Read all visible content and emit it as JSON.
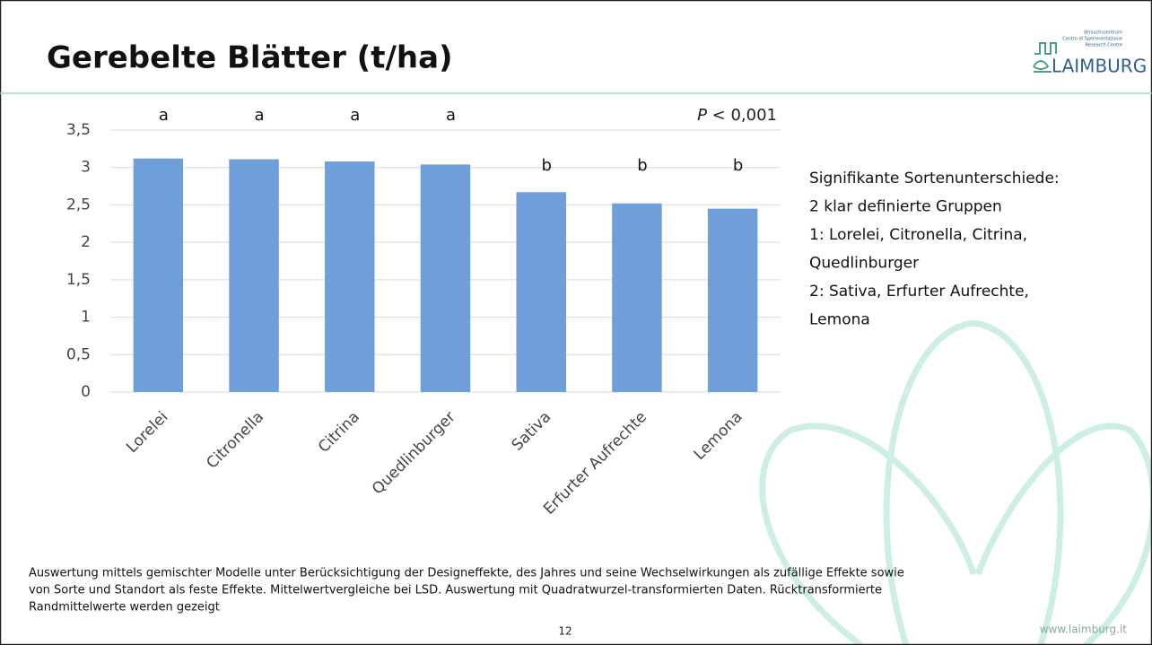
{
  "chart_data": {
    "type": "bar",
    "title": "Gerebelte Blätter (t/ha)",
    "categories": [
      "Lorelei",
      "Citronella",
      "Citrina",
      "Quedlinburger",
      "Sativa",
      "Erfurter Aufrechte",
      "Lemona"
    ],
    "values": [
      3.12,
      3.11,
      3.08,
      3.04,
      2.67,
      2.52,
      2.45
    ],
    "group_labels": [
      "a",
      "a",
      "a",
      "a",
      "b",
      "b",
      "b"
    ],
    "p_symbol": "P",
    "p_value": "< 0,001",
    "color": "#6f9fd8",
    "ylim": [
      0,
      3.5
    ],
    "yticks": [
      0,
      {
        "value": 0.5,
        "label": "0,5"
      },
      1,
      {
        "value": 1.5,
        "label": "1,5"
      },
      2,
      {
        "value": 2.5,
        "label": "2,5"
      },
      3,
      {
        "value": 3.5,
        "label": "3,5"
      }
    ],
    "grid": true
  },
  "notes": [
    "Signifikante Sortenunterschiede:",
    "2 klar definierte Gruppen",
    "1: Lorelei, Citronella, Citrina,",
    "Quedlinburger",
    "2: Sativa, Erfurter Aufrechte,",
    "Lemona"
  ],
  "footnote": [
    "Auswertung mittels gemischter Modelle unter Berücksichtigung der Designeffekte, des Jahres und seine Wechselwirkungen als zufällige Effekte sowie",
    "von Sorte und Standort als feste Effekte. Mittelwertvergleiche bei LSD. Auswertung mit Quadratwurzel-transformierten Daten. Rücktransformierte",
    "Randmittelwerte werden gezeigt"
  ],
  "page_number": "12",
  "website": "www.laimburg.it",
  "logo": {
    "name": "LAIMBURG",
    "lines": [
      "Versuchszentrum",
      "Centro di Sperimentazione",
      "Research Centre"
    ]
  }
}
